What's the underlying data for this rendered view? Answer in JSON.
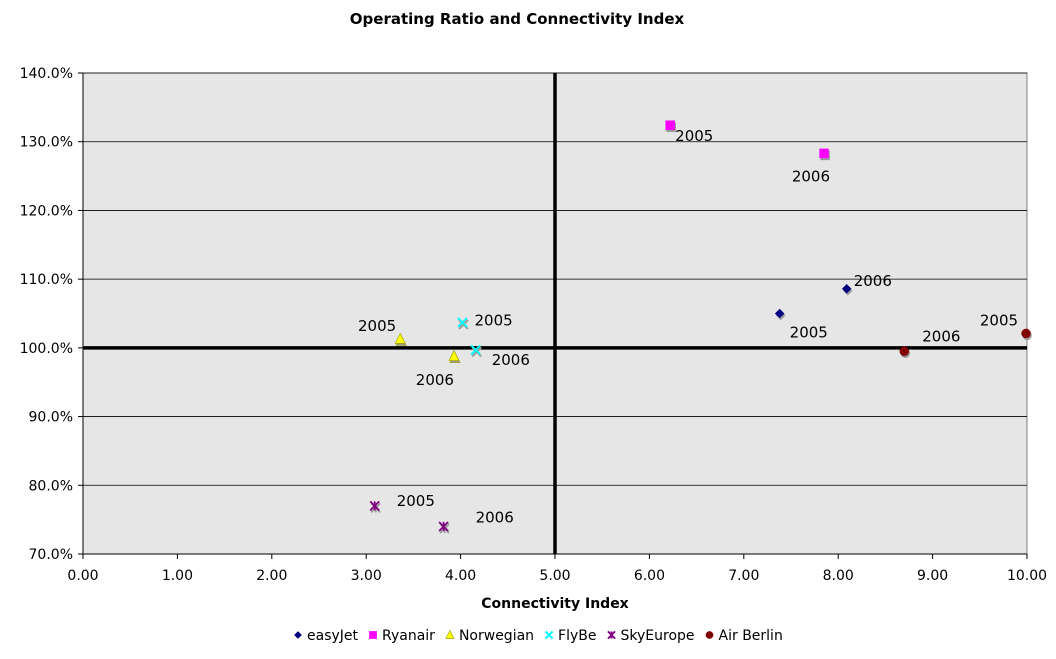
{
  "chart_data": {
    "type": "scatter",
    "title": "Operating Ratio and Connectivity Index",
    "xlabel": "Connectivity Index",
    "ylabel": "",
    "xlim": [
      0,
      10
    ],
    "ylim": [
      70,
      140
    ],
    "x_ticks": [
      0,
      1,
      2,
      3,
      4,
      5,
      6,
      7,
      8,
      9,
      10
    ],
    "x_tick_labels": [
      "0.00",
      "1.00",
      "2.00",
      "3.00",
      "4.00",
      "5.00",
      "6.00",
      "7.00",
      "8.00",
      "9.00",
      "10.00"
    ],
    "y_ticks": [
      70,
      80,
      90,
      100,
      110,
      120,
      130,
      140
    ],
    "y_tick_labels": [
      "70.0%",
      "80.0%",
      "90.0%",
      "100.0%",
      "110.0%",
      "120.0%",
      "130.0%",
      "140.0%"
    ],
    "grid": true,
    "legend_position": "bottom",
    "reference_lines": {
      "x": 5.0,
      "y": 100
    },
    "series": [
      {
        "name": "easyJet",
        "marker": "diamond",
        "color": "#000080",
        "points": [
          {
            "x": 7.38,
            "y": 105.0,
            "label": "2005"
          },
          {
            "x": 8.09,
            "y": 108.6,
            "label": "2006"
          }
        ]
      },
      {
        "name": "Ryanair",
        "marker": "square",
        "color": "#FF00FF",
        "points": [
          {
            "x": 6.22,
            "y": 132.4,
            "label": "2005"
          },
          {
            "x": 7.85,
            "y": 128.3,
            "label": "2006"
          }
        ]
      },
      {
        "name": "Norwegian",
        "marker": "triangle",
        "color": "#FFFF00",
        "points": [
          {
            "x": 3.36,
            "y": 101.3,
            "label": "2005"
          },
          {
            "x": 3.93,
            "y": 98.8,
            "label": "2006"
          }
        ]
      },
      {
        "name": "FlyBe",
        "marker": "x",
        "color": "#00FFFF",
        "points": [
          {
            "x": 4.02,
            "y": 103.7,
            "label": "2005"
          },
          {
            "x": 4.16,
            "y": 99.7,
            "label": "2006"
          }
        ]
      },
      {
        "name": "SkyEurope",
        "marker": "star",
        "color": "#800080",
        "points": [
          {
            "x": 3.09,
            "y": 77.0,
            "label": "2005"
          },
          {
            "x": 3.82,
            "y": 74.0,
            "label": "2006"
          }
        ]
      },
      {
        "name": "Air Berlin",
        "marker": "circle",
        "color": "#800000",
        "points": [
          {
            "x": 9.99,
            "y": 102.1,
            "label": "2005"
          },
          {
            "x": 8.7,
            "y": 99.5,
            "label": "2006"
          }
        ]
      }
    ]
  }
}
